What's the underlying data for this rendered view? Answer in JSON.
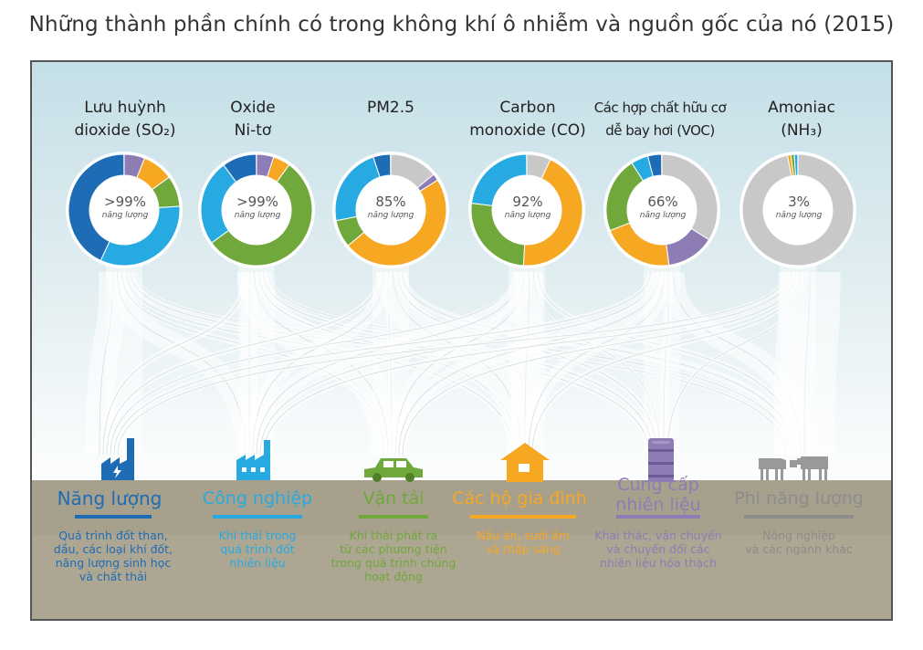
{
  "title": "Những thành phần chính có trong không khí ô nhiễm và nguồn gốc của nó (2015)",
  "colors": {
    "energy": "#1e6cb5",
    "industry": "#27aae1",
    "transport": "#70a83b",
    "households": "#f7a823",
    "fuel_supply": "#8e7cb4",
    "non_energy": "#8c8c8c"
  },
  "pollutants": [
    {
      "name_lines": [
        "Lưu huỳnh",
        "dioxide (SO₂)"
      ],
      "percent": ">99%",
      "sublabel": "năng lượng"
    },
    {
      "name_lines": [
        "Oxide",
        "Ni-tơ"
      ],
      "percent": ">99%",
      "sublabel": "năng lượng"
    },
    {
      "name_lines": [
        "",
        "PM2.5"
      ],
      "percent": "85%",
      "sublabel": "năng lượng"
    },
    {
      "name_lines": [
        "Carbon",
        "monoxide (CO)"
      ],
      "percent": "92%",
      "sublabel": "năng lượng"
    },
    {
      "name_lines": [
        "Các hợp chất hữu cơ",
        "dễ bay hơi (VOC)"
      ],
      "percent": "66%",
      "sublabel": "năng lượng"
    },
    {
      "name_lines": [
        "Amoniac",
        "(NH₃)"
      ],
      "percent": "3%",
      "sublabel": "năng lượng"
    }
  ],
  "sources": [
    {
      "name": "Năng lượng",
      "description": [
        "Quá trình đốt than,",
        "dầu, các loại khí đốt,",
        "năng lượng sinh học",
        "và chất thải"
      ],
      "icon": "power-plant-icon"
    },
    {
      "name": "Công nghiệp",
      "description": [
        "Khí thải trong",
        "quá trình đốt",
        "nhiên liệu"
      ],
      "icon": "factory-icon"
    },
    {
      "name": "Vận tải",
      "description": [
        "Khí thải phát ra",
        "từ các phương tiện",
        "trong quá trình chúng",
        "hoạt động"
      ],
      "icon": "car-icon"
    },
    {
      "name": "Các hộ gia đình",
      "description": [
        "Nấu ăn, sưởi ấm",
        "và thắp sáng"
      ],
      "icon": "house-icon"
    },
    {
      "name": "Cung cấp nhiên liệu",
      "name_lines": [
        "Cung cấp",
        "nhiên liệu"
      ],
      "description": [
        "Khai thác, vận chuyển",
        "và chuyển đổi các",
        "nhiên liệu hóa thạch"
      ],
      "icon": "oil-barrel-icon"
    },
    {
      "name": "Phi năng lượng",
      "description": [
        "Nông nghiệp",
        "và các ngành khác"
      ],
      "icon": "cattle-icon"
    }
  ]
}
